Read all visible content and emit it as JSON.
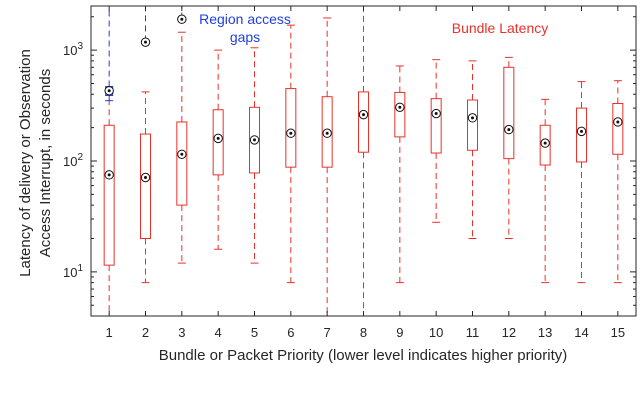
{
  "chart_data": {
    "type": "box",
    "title": "",
    "xlabel": "Bundle or Packet Priority (lower level indicates higher priority)",
    "ylabel_line1": "Latency of delivery or Observation",
    "ylabel_line2": "Access Interrupt, in seconds",
    "yscale": "log",
    "ylim": [
      4,
      2500
    ],
    "yticks": [
      10,
      100,
      1000
    ],
    "ytick_labels": [
      {
        "base": "10",
        "exp": "1"
      },
      {
        "base": "10",
        "exp": "2"
      },
      {
        "base": "10",
        "exp": "3"
      }
    ],
    "xlim": [
      0.5,
      15.5
    ],
    "categories": [
      "1",
      "2",
      "3",
      "4",
      "5",
      "6",
      "7",
      "8",
      "9",
      "10",
      "11",
      "12",
      "13",
      "14",
      "15"
    ],
    "grid": false,
    "legend": "none",
    "series": [
      {
        "name": "Bundle Latency",
        "color": "#e8312a",
        "boxes": [
          {
            "x": 1,
            "whisker_low": 4,
            "q1": 11.5,
            "median": 75,
            "q3": 210,
            "whisker_high": 420
          },
          {
            "x": 2,
            "whisker_low": 8,
            "q1": 20,
            "median": 71,
            "q3": 175,
            "whisker_high": 420
          },
          {
            "x": 3,
            "whisker_low": 12,
            "q1": 40,
            "median": 115,
            "q3": 225,
            "whisker_high": 1450
          },
          {
            "x": 4,
            "whisker_low": 16,
            "q1": 75,
            "median": 160,
            "q3": 290,
            "whisker_high": 1000
          },
          {
            "x": 5,
            "whisker_low": 12,
            "q1": 78,
            "median": 155,
            "q3": 305,
            "whisker_high": 1050
          },
          {
            "x": 6,
            "whisker_low": 8,
            "q1": 88,
            "median": 178,
            "q3": 450,
            "whisker_high": 1680
          },
          {
            "x": 7,
            "whisker_low": 4,
            "q1": 88,
            "median": 178,
            "q3": 380,
            "whisker_high": 1950
          },
          {
            "x": 8,
            "whisker_low": 4,
            "q1": 120,
            "median": 262,
            "q3": 420,
            "whisker_high": 2500
          },
          {
            "x": 9,
            "whisker_low": 8,
            "q1": 165,
            "median": 305,
            "q3": 415,
            "whisker_high": 720
          },
          {
            "x": 10,
            "whisker_low": 28,
            "q1": 118,
            "median": 268,
            "q3": 365,
            "whisker_high": 820
          },
          {
            "x": 11,
            "whisker_low": 20,
            "q1": 125,
            "median": 245,
            "q3": 355,
            "whisker_high": 800
          },
          {
            "x": 12,
            "whisker_low": 20,
            "q1": 105,
            "median": 192,
            "q3": 700,
            "whisker_high": 860
          },
          {
            "x": 13,
            "whisker_low": 8,
            "q1": 92,
            "median": 145,
            "q3": 210,
            "whisker_high": 360
          },
          {
            "x": 14,
            "whisker_low": 8,
            "q1": 98,
            "median": 185,
            "q3": 300,
            "whisker_high": 520
          },
          {
            "x": 15,
            "whisker_low": 8,
            "q1": 115,
            "median": 225,
            "q3": 330,
            "whisker_high": 530
          }
        ]
      },
      {
        "name": "Region access gaps",
        "color": "#1f3fe0",
        "boxes": [
          {
            "x": 1,
            "whisker_low": 350,
            "q1": 390,
            "median": 430,
            "q3": 470,
            "whisker_high": 2500
          },
          {
            "x": 2,
            "whisker_low": 1150,
            "q1": 1160,
            "median": 1180,
            "q3": 1200,
            "whisker_high": 2500
          },
          {
            "x": 3,
            "whisker_low": 1850,
            "q1": 1870,
            "median": 1900,
            "q3": 1930,
            "whisker_high": 2500
          }
        ]
      }
    ],
    "annotations": [
      {
        "text": "Bundle Latency",
        "color": "#e8312a"
      },
      {
        "text": "Region access",
        "color": "#1f3fe0"
      },
      {
        "text": "gaps",
        "color": "#1f3fe0"
      }
    ]
  }
}
